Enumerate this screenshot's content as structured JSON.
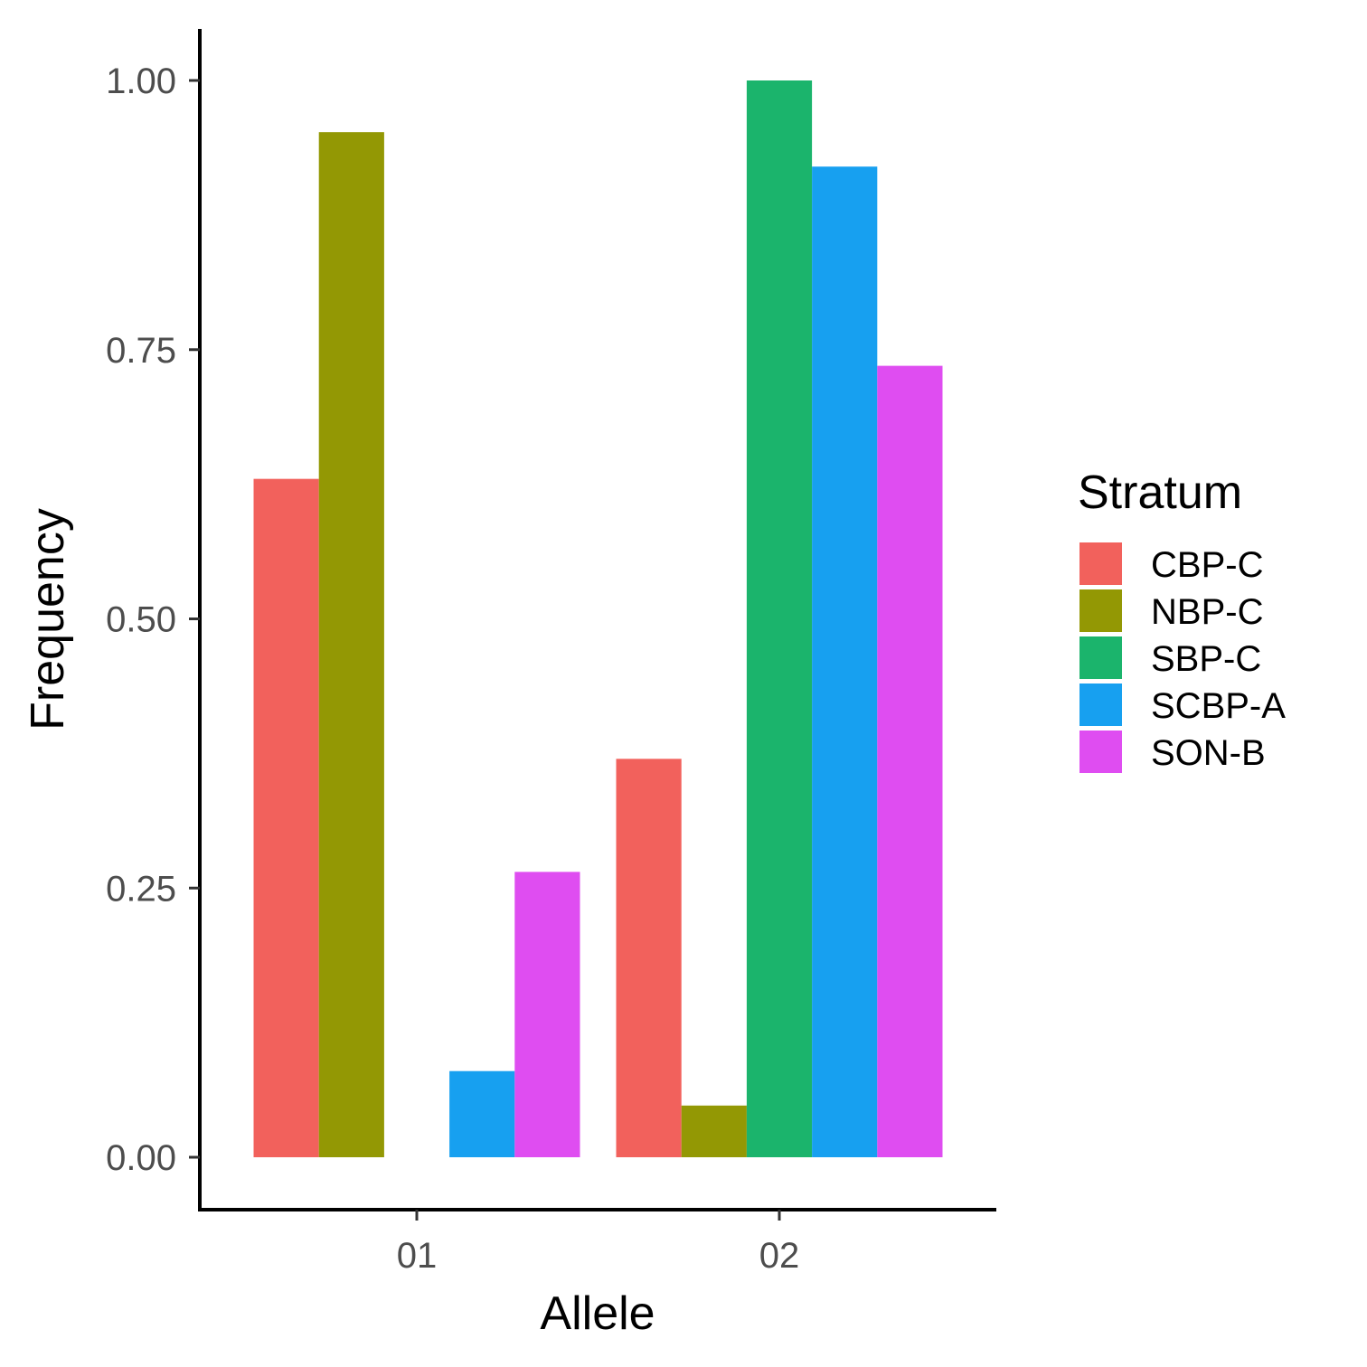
{
  "chart_data": {
    "type": "bar",
    "categories": [
      "01",
      "02"
    ],
    "series": [
      {
        "name": "CBP-C",
        "color": "#F2615C",
        "values": [
          0.63,
          0.37
        ]
      },
      {
        "name": "NBP-C",
        "color": "#939804",
        "values": [
          0.952,
          0.048
        ]
      },
      {
        "name": "SBP-C",
        "color": "#1BB46C",
        "values": [
          0.0,
          1.0
        ]
      },
      {
        "name": "SCBP-A",
        "color": "#17A0F0",
        "values": [
          0.08,
          0.92
        ]
      },
      {
        "name": "SON-B",
        "color": "#DF4DF1",
        "values": [
          0.265,
          0.735
        ]
      }
    ],
    "xlabel": "Allele",
    "ylabel": "Frequency",
    "ylim": [
      -0.05,
      1.05
    ],
    "yticks": [
      0.0,
      0.25,
      0.5,
      0.75,
      1.0
    ],
    "ytick_labels": [
      "0.00",
      "0.25",
      "0.50",
      "0.75",
      "1.00"
    ],
    "legend_title": "Stratum",
    "legend_position": "right",
    "grid": false
  }
}
